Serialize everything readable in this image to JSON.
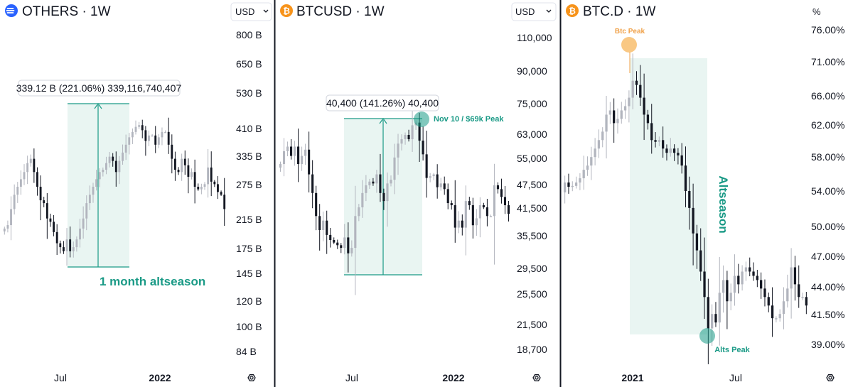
{
  "panels": [
    {
      "id": "others",
      "title": "OTHERS · 1W",
      "currency": "USD",
      "y_ticks": [
        "800 B",
        "650 B",
        "530 B",
        "410 B",
        "335 B",
        "275 B",
        "215 B",
        "175 B",
        "145 B",
        "120 B",
        "100 B",
        "84 B"
      ],
      "x_ticks": [
        {
          "label": "Jul",
          "bold": false
        },
        {
          "label": "2022",
          "bold": true
        }
      ],
      "measure_label": "339.12 B (221.06%) 339,116,740,407",
      "annotations": [
        {
          "text": "1 month altseason",
          "color": "#1a9a86"
        }
      ]
    },
    {
      "id": "btcusd",
      "title": "BTCUSD · 1W",
      "currency": "USD",
      "y_ticks": [
        "110,000",
        "90,000",
        "75,000",
        "63,000",
        "55,000",
        "47,500",
        "41,500",
        "35,500",
        "29,500",
        "25,500",
        "21,500",
        "18,700"
      ],
      "x_ticks": [
        {
          "label": "Jul",
          "bold": false
        },
        {
          "label": "2022",
          "bold": true
        }
      ],
      "measure_label": "40,400 (141.26%) 40,400",
      "annotations": [
        {
          "text": "Nov 10 / $69k Peak",
          "color": "#1a9a86"
        }
      ]
    },
    {
      "id": "btcd",
      "title": "BTC.D · 1W",
      "currency": "%",
      "y_ticks": [
        "76.00%",
        "71.00%",
        "66.00%",
        "62.00%",
        "58.00%",
        "54.00%",
        "50.00%",
        "47.00%",
        "44.00%",
        "41.50%",
        "39.00%"
      ],
      "x_ticks": [
        {
          "label": "2021",
          "bold": true
        },
        {
          "label": "Jul",
          "bold": false
        }
      ],
      "annotations": [
        {
          "text": "Btc Peak",
          "color": "#f0a24a"
        },
        {
          "text": "Altseason",
          "color": "#1a9a86"
        },
        {
          "text": "Alts Peak",
          "color": "#1a9a86"
        }
      ]
    }
  ],
  "colors": {
    "up": "#b2b5be",
    "down": "#131722",
    "highlight": "#1a9a86",
    "btc_orange": "#f7931a",
    "peak_orange": "#f0a24a",
    "altseason_blue": "#2962ff"
  },
  "chart_data": [
    {
      "type": "candlestick",
      "title": "OTHERS · 1W",
      "series": [
        {
          "name": "OTHERS",
          "close": [
            200,
            205,
            230,
            255,
            270,
            285,
            300,
            320,
            330,
            300,
            270,
            245,
            240,
            215,
            210,
            195,
            180,
            175,
            170,
            185,
            170,
            175,
            185,
            200,
            215,
            240,
            255,
            270,
            285,
            300,
            305,
            320,
            335,
            325,
            300,
            325,
            345,
            365,
            385,
            400,
            415,
            420,
            405,
            375,
            390,
            390,
            365,
            385,
            400,
            400,
            365,
            330,
            305,
            300,
            330,
            315,
            290,
            300,
            270,
            265,
            270,
            275,
            310,
            280,
            275,
            260,
            255,
            230
          ]
        }
      ],
      "y_ticks": [
        "800 B",
        "650 B",
        "530 B",
        "410 B",
        "335 B",
        "275 B",
        "215 B",
        "175 B",
        "145 B",
        "120 B",
        "100 B",
        "84 B"
      ],
      "x_ticks": [
        "Jul",
        "2022"
      ]
    },
    {
      "type": "candlestick",
      "title": "BTCUSD · 1W",
      "series": [
        {
          "name": "BTCUSD",
          "close": [
            53000,
            57000,
            58500,
            55500,
            58500,
            53000,
            55500,
            57500,
            50000,
            45000,
            39500,
            36500,
            38500,
            35500,
            34500,
            34000,
            33500,
            33000,
            35000,
            32000,
            33000,
            39500,
            41500,
            45000,
            47000,
            48000,
            47500,
            50000,
            45000,
            43000,
            47500,
            48500,
            55000,
            59500,
            61000,
            62500,
            61000,
            66000,
            67000,
            60500,
            56000,
            49000,
            49500,
            50000,
            46500,
            47500,
            46000,
            42500,
            42000,
            37000,
            38500,
            37000,
            43000,
            42000,
            37500,
            39000,
            42000,
            41500,
            39500,
            39500,
            47000,
            46000,
            44000,
            42000,
            40000
          ]
        }
      ],
      "y_ticks": [
        "110,000",
        "90,000",
        "75,000",
        "63,000",
        "55,000",
        "47,500",
        "41,500",
        "35,500",
        "29,500",
        "25,500",
        "21,500",
        "18,700"
      ],
      "x_ticks": [
        "Jul",
        "2022"
      ]
    },
    {
      "type": "candlestick",
      "title": "BTC.D · 1W",
      "series": [
        {
          "name": "BTC.D",
          "close": [
            58,
            57.5,
            57.6,
            58,
            58.5,
            59.5,
            60,
            61,
            62,
            63,
            64,
            66,
            66.5,
            65,
            65.5,
            66.5,
            67,
            68,
            70,
            69.5,
            68,
            66,
            65,
            63,
            62.8,
            63,
            62,
            61.5,
            62,
            61.5,
            61.2,
            60,
            57,
            55,
            52,
            50,
            47.5,
            44.5,
            40.8,
            42.5,
            41.5,
            45,
            46.5,
            44,
            45,
            47,
            46,
            47.5,
            48,
            47.5,
            47,
            46.5,
            45.5,
            44.5,
            43.5,
            42,
            42,
            42.5,
            44,
            45.5,
            48,
            46,
            44.5,
            44.5,
            43.5
          ]
        }
      ],
      "y_ticks": [
        "76.00%",
        "71.00%",
        "66.00%",
        "62.00%",
        "58.00%",
        "54.00%",
        "50.00%",
        "47.00%",
        "44.00%",
        "41.50%",
        "39.00%"
      ],
      "x_ticks": [
        "2021",
        "Jul"
      ]
    }
  ]
}
